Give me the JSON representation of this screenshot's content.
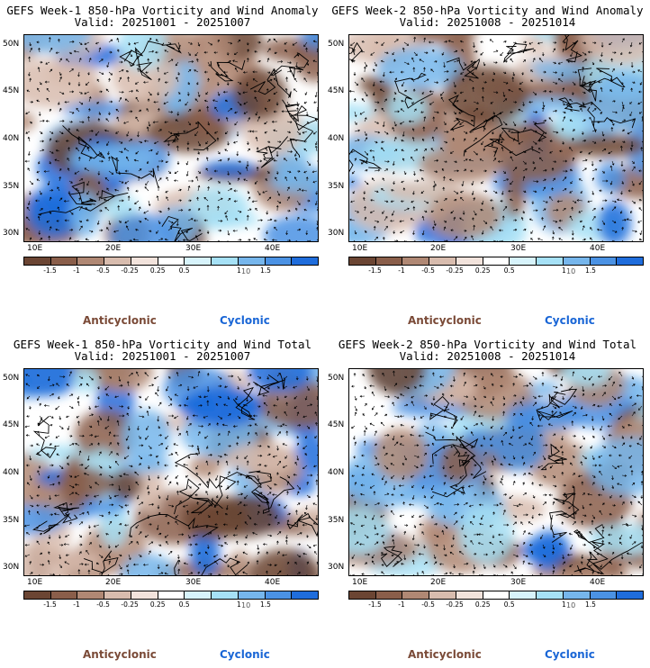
{
  "colors": {
    "anticyclonic": "#7a4a37",
    "cyclonic": "#1a66d6",
    "map_bg": "#ffffff"
  },
  "colorbar_colors": [
    "#6b4533",
    "#8a5e4a",
    "#b08874",
    "#d8bcae",
    "#f2e3dc",
    "#ffffff",
    "#d7f3fb",
    "#a6e1f6",
    "#76b6ec",
    "#4b92e4",
    "#1f6ddc"
  ],
  "colorbar_ticks": [
    "-1.5",
    "-1",
    "-0.5",
    "-0.25",
    "0.25",
    "0.5",
    "1",
    "1.5"
  ],
  "colorbar_unit": "10",
  "lat_labels": [
    "50N",
    "45N",
    "40N",
    "35N",
    "30N"
  ],
  "lon_labels": [
    "10E",
    "20E",
    "30E",
    "40E"
  ],
  "legend": {
    "anticyclonic": "Anticyclonic",
    "cyclonic": "Cyclonic"
  },
  "panels": [
    {
      "title": "GEFS Week-1 850-hPa Vorticity and Wind Anomaly",
      "valid": "Valid: 20251001 - 20251007"
    },
    {
      "title": "GEFS Week-2 850-hPa Vorticity and Wind Anomaly",
      "valid": "Valid: 20251008 - 20251014"
    },
    {
      "title": "GEFS Week-1 850-hPa Vorticity and Wind Total",
      "valid": "Valid: 20251001 - 20251007"
    },
    {
      "title": "GEFS Week-2 850-hPa Vorticity and Wind Total",
      "valid": "Valid: 20251008 - 20251014"
    }
  ]
}
